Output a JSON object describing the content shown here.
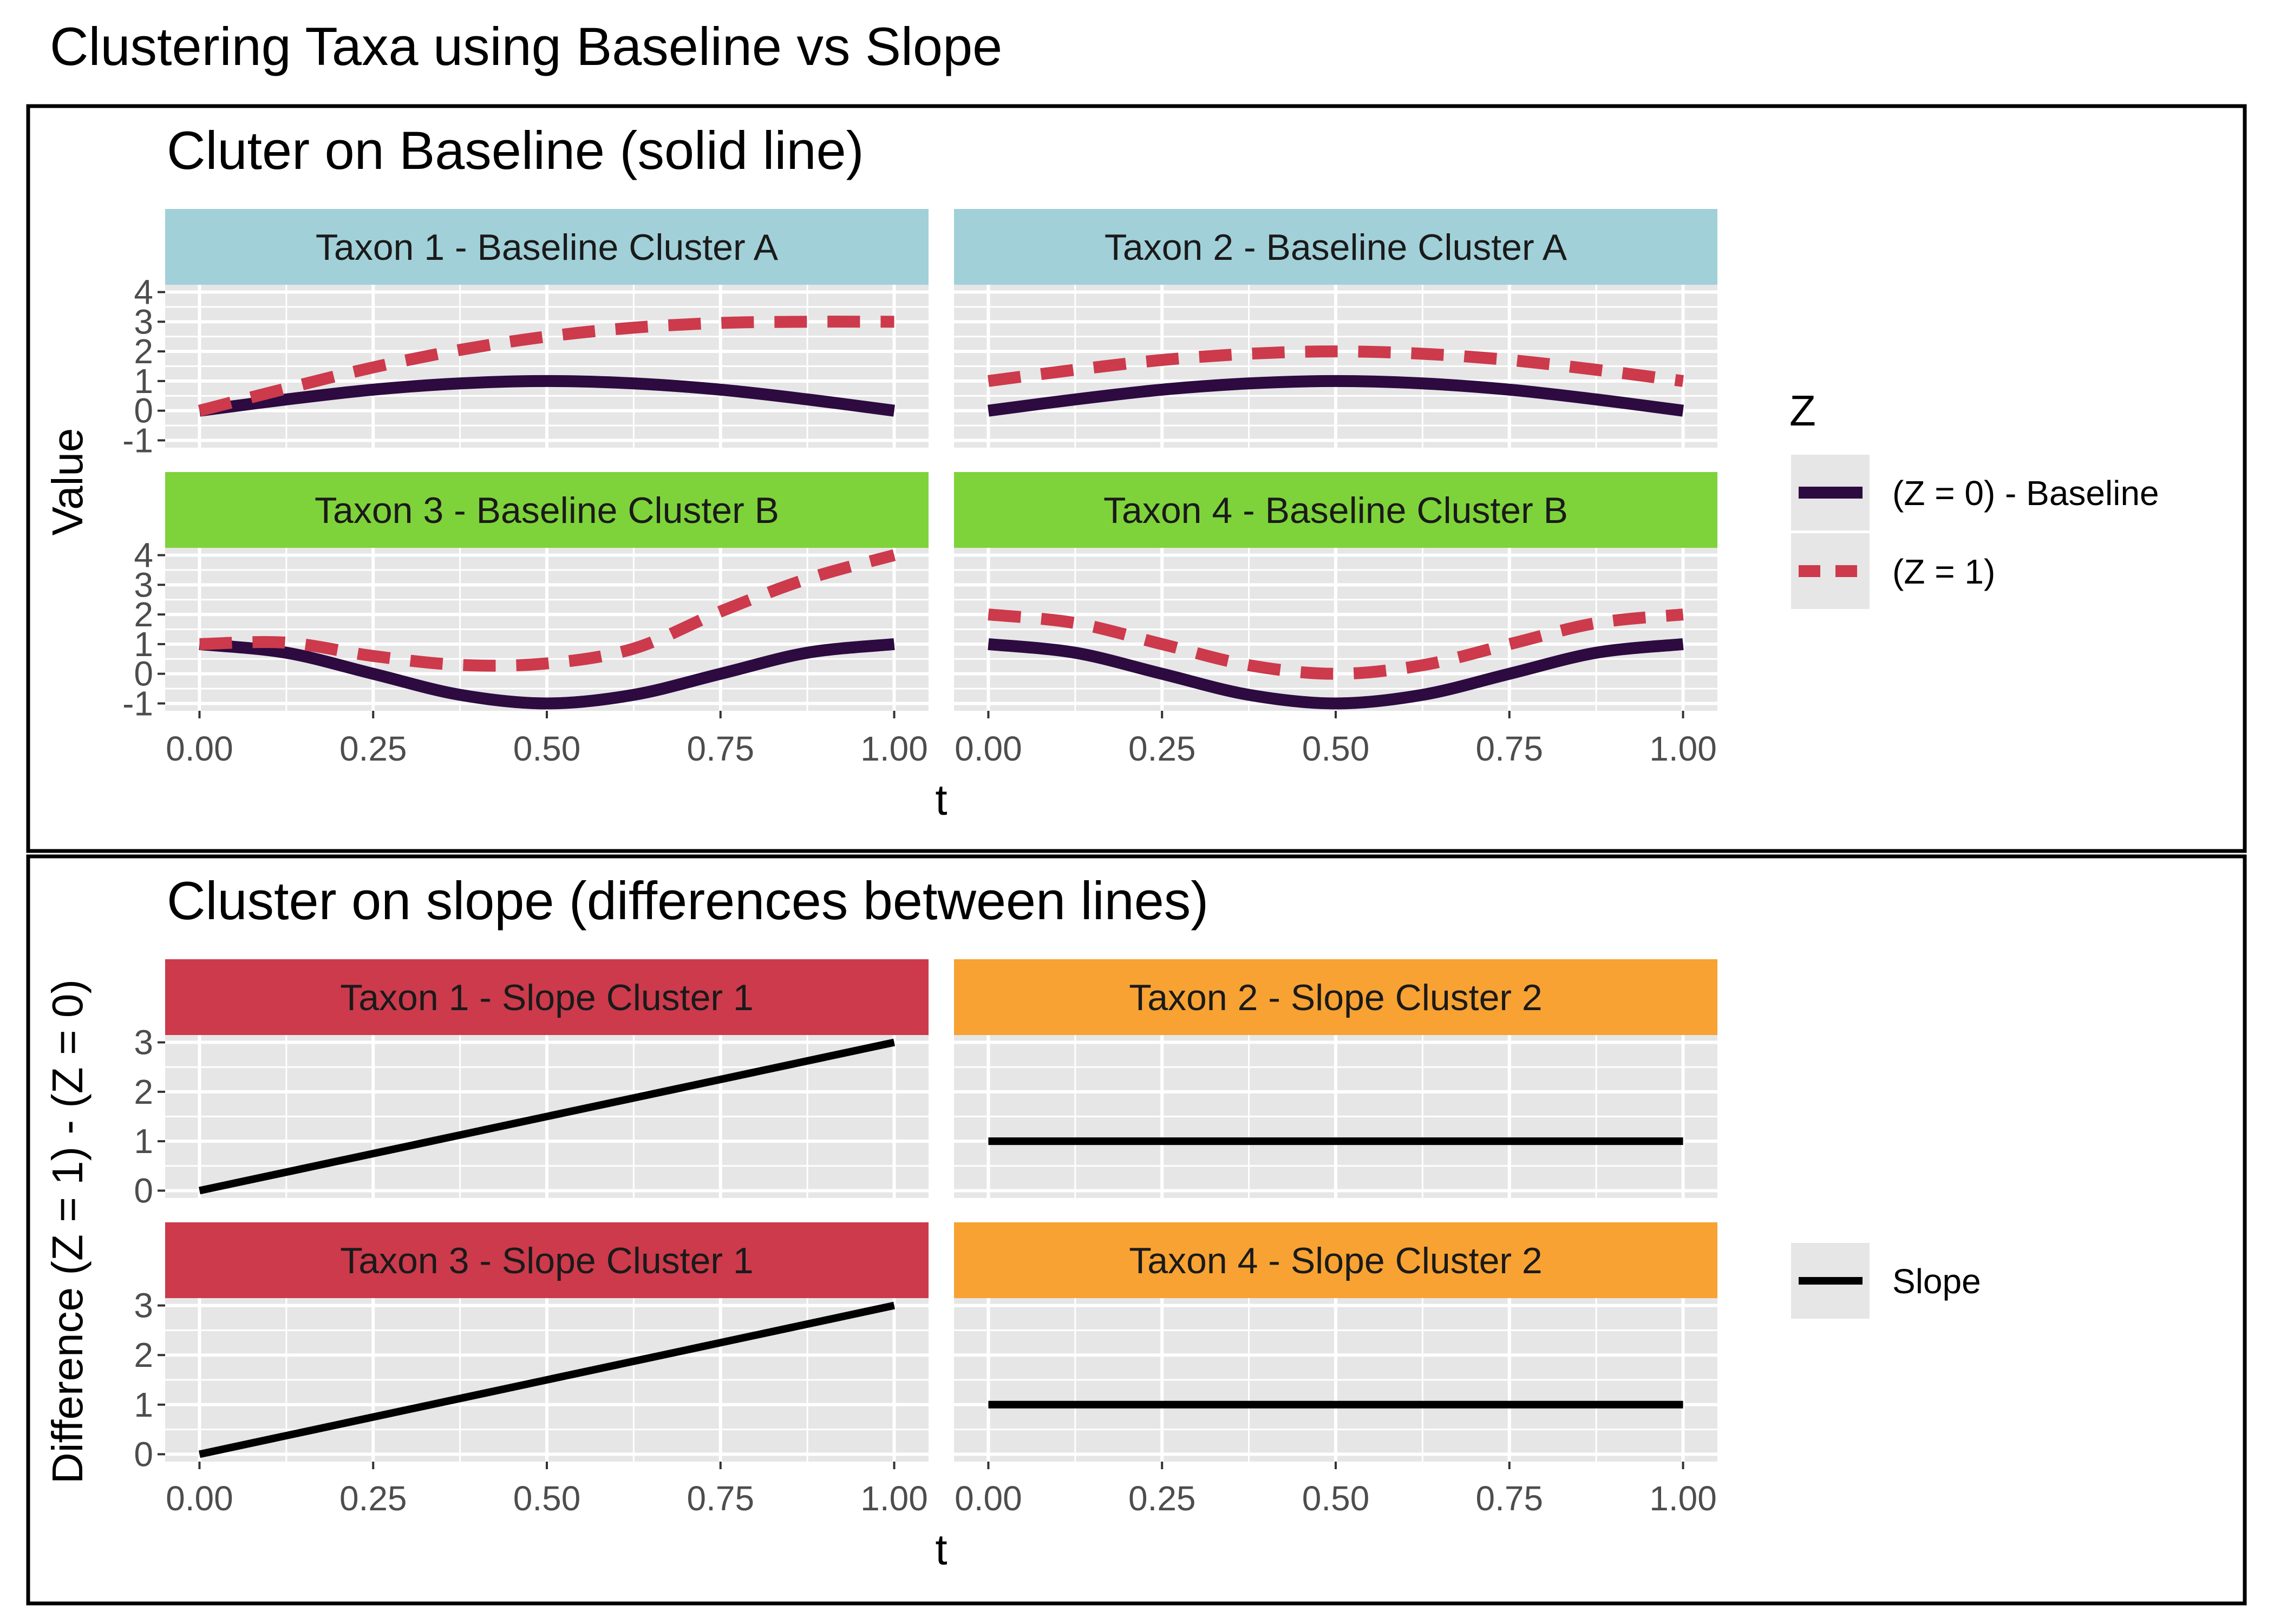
{
  "title": "Clustering Taxa using Baseline vs Slope",
  "colors": {
    "z0": "#2D0A40",
    "z1": "#CC3A4C",
    "slope": "#000000",
    "panel_bg": "#E6E6E6",
    "grid": "#FFFFFF",
    "strip_baseline_a": "#A1D0D8",
    "strip_baseline_b": "#7ED33A",
    "strip_slope_1": "#CC3A4C",
    "strip_slope_2": "#F7A232"
  },
  "chart_data": [
    {
      "type": "line",
      "title": "Cluter on Baseline (solid line)",
      "xlabel": "t",
      "ylabel": "Value",
      "xlim": [
        0,
        1
      ],
      "ylim": [
        -1,
        4
      ],
      "x_ticks": [
        "0.00",
        "0.25",
        "0.50",
        "0.75",
        "1.00"
      ],
      "y_ticks": [
        "-1",
        "0",
        "1",
        "2",
        "3",
        "4"
      ],
      "grid": true,
      "legend": {
        "title": "Z",
        "placement": "right",
        "entries": [
          {
            "label": "(Z = 0) - Baseline",
            "style": "solid",
            "color": "#2D0A40"
          },
          {
            "label": "(Z = 1)",
            "style": "dashed",
            "color": "#CC3A4C"
          }
        ]
      },
      "x": [
        0,
        0.125,
        0.25,
        0.375,
        0.5,
        0.625,
        0.75,
        0.875,
        1
      ],
      "panels": [
        {
          "strip": "Taxon 1 - Baseline Cluster A",
          "strip_color": "#A1D0D8",
          "series": [
            {
              "name": "(Z = 0) - Baseline",
              "values": [
                0,
                0.38,
                0.71,
                0.92,
                1.0,
                0.92,
                0.71,
                0.38,
                0
              ]
            },
            {
              "name": "(Z = 1)",
              "values": [
                0,
                0.75,
                1.46,
                2.05,
                2.5,
                2.8,
                2.96,
                3.0,
                3.0
              ]
            }
          ]
        },
        {
          "strip": "Taxon 2 - Baseline Cluster A",
          "strip_color": "#A1D0D8",
          "series": [
            {
              "name": "(Z = 0) - Baseline",
              "values": [
                0,
                0.38,
                0.71,
                0.92,
                1.0,
                0.92,
                0.71,
                0.38,
                0
              ]
            },
            {
              "name": "(Z = 1)",
              "values": [
                1,
                1.38,
                1.71,
                1.92,
                2.0,
                1.92,
                1.71,
                1.38,
                1
              ]
            }
          ]
        },
        {
          "strip": "Taxon 3 - Baseline Cluster B",
          "strip_color": "#7ED33A",
          "series": [
            {
              "name": "(Z = 0) - Baseline",
              "values": [
                1,
                0.71,
                0,
                -0.71,
                -1,
                -0.71,
                0,
                0.71,
                1
              ]
            },
            {
              "name": "(Z = 1)",
              "values": [
                1,
                1.05,
                0.6,
                0.3,
                0.35,
                0.85,
                2.1,
                3.2,
                4.0
              ]
            }
          ]
        },
        {
          "strip": "Taxon 4 - Baseline Cluster B",
          "strip_color": "#7ED33A",
          "series": [
            {
              "name": "(Z = 0) - Baseline",
              "values": [
                1,
                0.71,
                0,
                -0.71,
                -1,
                -0.71,
                0,
                0.71,
                1
              ]
            },
            {
              "name": "(Z = 1)",
              "values": [
                2,
                1.71,
                1,
                0.29,
                0,
                0.29,
                1,
                1.71,
                2
              ]
            }
          ]
        }
      ]
    },
    {
      "type": "line",
      "title": "Cluster on slope (differences between lines)",
      "xlabel": "t",
      "ylabel": "Difference (Z = 1) - (Z = 0)",
      "xlim": [
        0,
        1
      ],
      "ylim": [
        0,
        3
      ],
      "x_ticks": [
        "0.00",
        "0.25",
        "0.50",
        "0.75",
        "1.00"
      ],
      "y_ticks": [
        "0",
        "1",
        "2",
        "3"
      ],
      "grid": true,
      "legend": {
        "placement": "right",
        "entries": [
          {
            "label": "Slope",
            "style": "solid",
            "color": "#000000"
          }
        ]
      },
      "x": [
        0,
        1
      ],
      "panels": [
        {
          "strip": "Taxon 1 - Slope Cluster 1",
          "strip_color": "#CC3A4C",
          "series": [
            {
              "name": "Slope",
              "values": [
                0,
                3
              ]
            }
          ]
        },
        {
          "strip": "Taxon 2 - Slope Cluster 2",
          "strip_color": "#F7A232",
          "series": [
            {
              "name": "Slope",
              "values": [
                1,
                1
              ]
            }
          ]
        },
        {
          "strip": "Taxon 3 - Slope Cluster 1",
          "strip_color": "#CC3A4C",
          "series": [
            {
              "name": "Slope",
              "values": [
                0,
                3
              ]
            }
          ]
        },
        {
          "strip": "Taxon 4 - Slope Cluster 2",
          "strip_color": "#F7A232",
          "series": [
            {
              "name": "Slope",
              "values": [
                1,
                1
              ]
            }
          ]
        }
      ]
    }
  ]
}
